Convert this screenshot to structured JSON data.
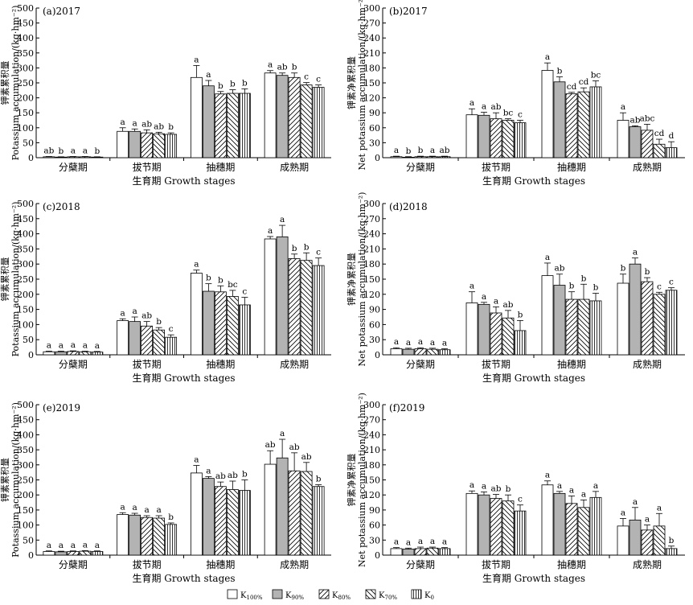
{
  "series_names": [
    "K100%",
    "K90%",
    "K80%",
    "K70%",
    "K0"
  ],
  "series_display": [
    {
      "base": "K",
      "sub": "100%"
    },
    {
      "base": "K",
      "sub": "90%"
    },
    {
      "base": "K",
      "sub": "80%"
    },
    {
      "base": "K",
      "sub": "70%"
    },
    {
      "base": "K",
      "sub": "0"
    }
  ],
  "colors": {
    "white": "#ffffff",
    "gray": "#b3b3b3",
    "stroke": "#000000"
  },
  "chart_data": [
    {
      "type": "bar",
      "panel": "(a)2017",
      "ylabel_cn": "钾素累积量",
      "ylabel_en": "Potassium accumulation/(kg·hm⁻²)",
      "xlabel": "生育期 Growth stages",
      "categories": [
        "分蘖期",
        "拔节期",
        "抽穗期",
        "成熟期"
      ],
      "ylim": [
        0,
        500
      ],
      "yticks": [
        0,
        50,
        100,
        150,
        200,
        250,
        300,
        350,
        400,
        450,
        500
      ],
      "series": [
        {
          "name": "K100%",
          "values": [
            3,
            88,
            268,
            283
          ],
          "errors": [
            1,
            12,
            40,
            8
          ],
          "letters": [
            "ab",
            "a",
            "a",
            "a"
          ]
        },
        {
          "name": "K90%",
          "values": [
            2,
            88,
            240,
            275
          ],
          "errors": [
            1,
            8,
            18,
            8
          ],
          "letters": [
            "b",
            "a",
            "a",
            "ab"
          ]
        },
        {
          "name": "K80%",
          "values": [
            3,
            83,
            213,
            268
          ],
          "errors": [
            1,
            10,
            8,
            15
          ],
          "letters": [
            "a",
            "ab",
            "b",
            "b"
          ]
        },
        {
          "name": "K70%",
          "values": [
            3,
            80,
            215,
            243
          ],
          "errors": [
            1,
            5,
            12,
            8
          ],
          "letters": [
            "a",
            "ab",
            "b",
            "c"
          ]
        },
        {
          "name": "K0",
          "values": [
            2,
            78,
            215,
            235
          ],
          "errors": [
            1,
            5,
            15,
            8
          ],
          "letters": [
            "b",
            "b",
            "b",
            "c"
          ]
        }
      ]
    },
    {
      "type": "bar",
      "panel": "(b)2017",
      "ylabel_cn": "钾素净累积量",
      "ylabel_en": "Net potassium accumulation/(kg·hm⁻²)",
      "xlabel": "生育期 Growth stages",
      "categories": [
        "分蘖期",
        "拔节期",
        "抽穗期",
        "成熟期"
      ],
      "ylim": [
        0,
        300
      ],
      "yticks": [
        0,
        30,
        60,
        90,
        120,
        150,
        180,
        210,
        240,
        270,
        300
      ],
      "series": [
        {
          "name": "K100%",
          "values": [
            2,
            86,
            175,
            75
          ],
          "errors": [
            1,
            12,
            15,
            15
          ],
          "letters": [
            "a",
            "a",
            "a",
            "a"
          ]
        },
        {
          "name": "K90%",
          "values": [
            1,
            85,
            152,
            62
          ],
          "errors": [
            1,
            6,
            10,
            2
          ],
          "letters": [
            "b",
            "a",
            "b",
            "ab"
          ]
        },
        {
          "name": "K80%",
          "values": [
            2,
            78,
            128,
            55
          ],
          "errors": [
            1,
            12,
            3,
            12
          ],
          "letters": [
            "b",
            "ab",
            "cd",
            "abc"
          ]
        },
        {
          "name": "K70%",
          "values": [
            2,
            75,
            132,
            27
          ],
          "errors": [
            1,
            3,
            8,
            10
          ],
          "letters": [
            "a",
            "bc",
            "cd",
            "cd"
          ]
        },
        {
          "name": "K0",
          "values": [
            2,
            70,
            142,
            20
          ],
          "errors": [
            1,
            5,
            12,
            12
          ],
          "letters": [
            "ab",
            "c",
            "bc",
            "d"
          ]
        }
      ]
    },
    {
      "type": "bar",
      "panel": "(c)2018",
      "ylabel_cn": "钾素累积量",
      "ylabel_en": "Potassium accumulation/(kg·hm⁻²)",
      "xlabel": "生育期 Growth stages",
      "categories": [
        "分蘖期",
        "拔节期",
        "抽穗期",
        "成熟期"
      ],
      "ylim": [
        0,
        500
      ],
      "yticks": [
        0,
        50,
        100,
        150,
        200,
        250,
        300,
        350,
        400,
        450,
        500
      ],
      "series": [
        {
          "name": "K100%",
          "values": [
            10,
            113,
            270,
            383
          ],
          "errors": [
            2,
            6,
            10,
            8
          ],
          "letters": [
            "a",
            "a",
            "a",
            "a"
          ]
        },
        {
          "name": "K90%",
          "values": [
            10,
            110,
            210,
            390
          ],
          "errors": [
            2,
            15,
            25,
            38
          ],
          "letters": [
            "a",
            "a",
            "b",
            "a"
          ]
        },
        {
          "name": "K80%",
          "values": [
            11,
            95,
            208,
            318
          ],
          "errors": [
            2,
            15,
            20,
            15
          ],
          "letters": [
            "a",
            "ab",
            "b",
            "b"
          ]
        },
        {
          "name": "K70%",
          "values": [
            10,
            82,
            193,
            312
          ],
          "errors": [
            2,
            8,
            20,
            25
          ],
          "letters": [
            "a",
            "b",
            "bc",
            "b"
          ]
        },
        {
          "name": "K0",
          "values": [
            9,
            58,
            165,
            295
          ],
          "errors": [
            2,
            8,
            25,
            25
          ],
          "letters": [
            "a",
            "c",
            "c",
            "c"
          ]
        }
      ]
    },
    {
      "type": "bar",
      "panel": "(d)2018",
      "ylabel_cn": "钾素净累积量",
      "ylabel_en": "Net potassium accumulation/(kg·hm⁻²)",
      "xlabel": "生育期 Growth stages",
      "categories": [
        "分蘖期",
        "拔节期",
        "抽穗期",
        "成熟期"
      ],
      "ylim": [
        0,
        300
      ],
      "yticks": [
        0,
        30,
        60,
        90,
        120,
        150,
        180,
        210,
        240,
        270,
        300
      ],
      "series": [
        {
          "name": "K100%",
          "values": [
            12,
            103,
            157,
            142
          ],
          "errors": [
            2,
            22,
            25,
            18
          ],
          "letters": [
            "a",
            "a",
            "a",
            "b"
          ]
        },
        {
          "name": "K90%",
          "values": [
            11,
            100,
            138,
            180
          ],
          "errors": [
            2,
            4,
            22,
            12
          ],
          "letters": [
            "a",
            "a",
            "ab",
            "a"
          ]
        },
        {
          "name": "K80%",
          "values": [
            12,
            83,
            110,
            145
          ],
          "errors": [
            2,
            12,
            15,
            8
          ],
          "letters": [
            "a",
            "a",
            "b",
            "b"
          ]
        },
        {
          "name": "K70%",
          "values": [
            11,
            73,
            110,
            120
          ],
          "errors": [
            2,
            15,
            30,
            4
          ],
          "letters": [
            "a",
            "ab",
            "b",
            "c"
          ]
        },
        {
          "name": "K0",
          "values": [
            10,
            48,
            107,
            128
          ],
          "errors": [
            2,
            20,
            15,
            5
          ],
          "letters": [
            "a",
            "b",
            "b",
            "c"
          ]
        }
      ]
    },
    {
      "type": "bar",
      "panel": "(e)2019",
      "ylabel_cn": "钾素累积量",
      "ylabel_en": "Potassium accumulation/(kg·hm⁻²)",
      "xlabel": "生育期 Growth stages",
      "categories": [
        "分蘖期",
        "拔节期",
        "抽穗期",
        "成熟期"
      ],
      "ylim": [
        0,
        500
      ],
      "yticks": [
        0,
        50,
        100,
        150,
        200,
        250,
        300,
        350,
        400,
        450,
        500
      ],
      "series": [
        {
          "name": "K100%",
          "values": [
            12,
            135,
            273,
            302
          ],
          "errors": [
            2,
            6,
            25,
            45
          ],
          "letters": [
            "a",
            "a",
            "a",
            "ab"
          ]
        },
        {
          "name": "K90%",
          "values": [
            11,
            133,
            255,
            323
          ],
          "errors": [
            2,
            6,
            6,
            62
          ],
          "letters": [
            "a",
            "a",
            "a",
            "a"
          ]
        },
        {
          "name": "K80%",
          "values": [
            12,
            125,
            228,
            280
          ],
          "errors": [
            2,
            6,
            15,
            60
          ],
          "letters": [
            "a",
            "a",
            "ab",
            "ab"
          ]
        },
        {
          "name": "K70%",
          "values": [
            13,
            123,
            218,
            278
          ],
          "errors": [
            2,
            8,
            28,
            30
          ],
          "letters": [
            "a",
            "a",
            "ab",
            "ab"
          ]
        },
        {
          "name": "K0",
          "values": [
            12,
            102,
            215,
            228
          ],
          "errors": [
            2,
            5,
            35,
            6
          ],
          "letters": [
            "a",
            "b",
            "b",
            "b"
          ]
        }
      ]
    },
    {
      "type": "bar",
      "panel": "(f)2019",
      "ylabel_cn": "钾素净累积量",
      "ylabel_en": "Net potassium accumulation/(kg·hm⁻²)",
      "xlabel": "生育期 Growth stages",
      "categories": [
        "分蘖期",
        "拔节期",
        "抽穗期",
        "成熟期"
      ],
      "ylim": [
        0,
        300
      ],
      "yticks": [
        0,
        30,
        60,
        90,
        120,
        150,
        180,
        210,
        240,
        270,
        300
      ],
      "series": [
        {
          "name": "K100%",
          "values": [
            13,
            123,
            140,
            58
          ],
          "errors": [
            2,
            5,
            8,
            15
          ],
          "letters": [
            "a",
            "a",
            "a",
            "a"
          ]
        },
        {
          "name": "K90%",
          "values": [
            12,
            120,
            123,
            70
          ],
          "errors": [
            2,
            6,
            4,
            25
          ],
          "letters": [
            "a",
            "a",
            "a",
            "a"
          ]
        },
        {
          "name": "K80%",
          "values": [
            13,
            113,
            103,
            50
          ],
          "errors": [
            3,
            8,
            15,
            10
          ],
          "letters": [
            "a",
            "ab",
            "a",
            "a"
          ]
        },
        {
          "name": "K70%",
          "values": [
            14,
            108,
            95,
            58
          ],
          "errors": [
            2,
            12,
            15,
            25
          ],
          "letters": [
            "a",
            "b",
            "a",
            "a"
          ]
        },
        {
          "name": "K0",
          "values": [
            13,
            88,
            115,
            13
          ],
          "errors": [
            2,
            12,
            12,
            5
          ],
          "letters": [
            "a",
            "c",
            "a",
            "b"
          ]
        }
      ]
    }
  ]
}
